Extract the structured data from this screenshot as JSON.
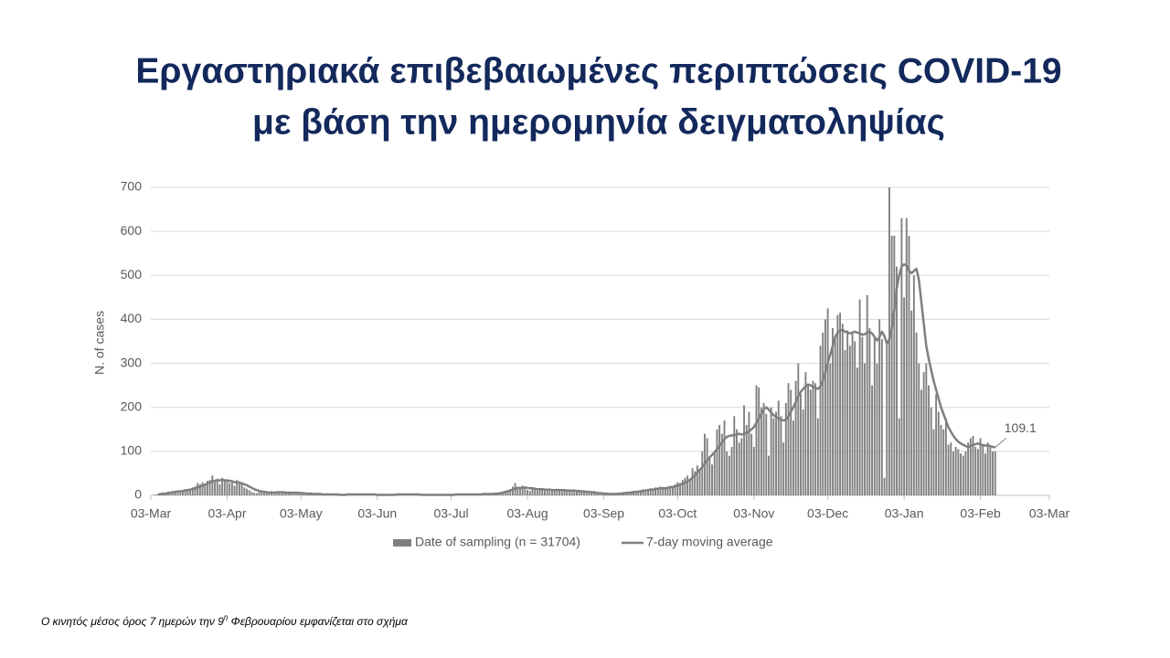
{
  "chart_data": {
    "type": "bar-line",
    "title": [
      "Εργαστηριακά επιβεβαιωμένες περιπτώσεις COVID-19",
      "με βάση την ημερομηνία δειγματοληψίας"
    ],
    "y_label": "N. of cases",
    "annotation": "109.1",
    "footnote": [
      "Ο κινητός μέσος όρος 7 ημερών την 9",
      "η",
      " Φεβρουαρίου  εμφανίζεται στο σχήμα"
    ],
    "xlim": [
      0,
      365
    ],
    "xticks": [
      {
        "value": 0,
        "label": "03-Mar"
      },
      {
        "value": 31,
        "label": "03-Apr"
      },
      {
        "value": 61,
        "label": "03-May"
      },
      {
        "value": 92,
        "label": "03-Jun"
      },
      {
        "value": 122,
        "label": "03-Jul"
      },
      {
        "value": 153,
        "label": "03-Aug"
      },
      {
        "value": 184,
        "label": "03-Sep"
      },
      {
        "value": 214,
        "label": "03-Oct"
      },
      {
        "value": 245,
        "label": "03-Nov"
      },
      {
        "value": 275,
        "label": "03-Dec"
      },
      {
        "value": 306,
        "label": "03-Jan"
      },
      {
        "value": 337,
        "label": "03-Feb"
      },
      {
        "value": 365,
        "label": "03-Mar"
      }
    ],
    "ylim": [
      0,
      700
    ],
    "yticks": [
      0,
      100,
      200,
      300,
      400,
      500,
      600,
      700
    ],
    "grid": true,
    "legend": "bottom",
    "x": [
      0,
      1,
      2,
      3,
      4,
      5,
      6,
      7,
      8,
      9,
      10,
      11,
      12,
      13,
      14,
      15,
      16,
      17,
      18,
      19,
      20,
      21,
      22,
      23,
      24,
      25,
      26,
      27,
      28,
      29,
      30,
      31,
      32,
      33,
      34,
      35,
      36,
      37,
      38,
      39,
      40,
      41,
      42,
      43,
      44,
      45,
      46,
      47,
      48,
      49,
      50,
      51,
      52,
      53,
      54,
      55,
      56,
      57,
      58,
      59,
      60,
      61,
      62,
      63,
      64,
      65,
      66,
      67,
      68,
      69,
      70,
      71,
      72,
      73,
      74,
      75,
      76,
      77,
      78,
      79,
      80,
      81,
      82,
      83,
      84,
      85,
      86,
      87,
      88,
      89,
      90,
      91,
      92,
      93,
      94,
      95,
      96,
      97,
      98,
      99,
      100,
      101,
      102,
      103,
      104,
      105,
      106,
      107,
      108,
      109,
      110,
      111,
      112,
      113,
      114,
      115,
      116,
      117,
      118,
      119,
      120,
      121,
      122,
      123,
      124,
      125,
      126,
      127,
      128,
      129,
      130,
      131,
      132,
      133,
      134,
      135,
      136,
      137,
      138,
      139,
      140,
      141,
      142,
      143,
      144,
      145,
      146,
      147,
      148,
      149,
      150,
      151,
      152,
      153,
      154,
      155,
      156,
      157,
      158,
      159,
      160,
      161,
      162,
      163,
      164,
      165,
      166,
      167,
      168,
      169,
      170,
      171,
      172,
      173,
      174,
      175,
      176,
      177,
      178,
      179,
      180,
      181,
      182,
      183,
      184,
      185,
      186,
      187,
      188,
      189,
      190,
      191,
      192,
      193,
      194,
      195,
      196,
      197,
      198,
      199,
      200,
      201,
      202,
      203,
      204,
      205,
      206,
      207,
      208,
      209,
      210,
      211,
      212,
      213,
      214,
      215,
      216,
      217,
      218,
      219,
      220,
      221,
      222,
      223,
      224,
      225,
      226,
      227,
      228,
      229,
      230,
      231,
      232,
      233,
      234,
      235,
      236,
      237,
      238,
      239,
      240,
      241,
      242,
      243,
      244,
      245,
      246,
      247,
      248,
      249,
      250,
      251,
      252,
      253,
      254,
      255,
      256,
      257,
      258,
      259,
      260,
      261,
      262,
      263,
      264,
      265,
      266,
      267,
      268,
      269,
      270,
      271,
      272,
      273,
      274,
      275,
      276,
      277,
      278,
      279,
      280,
      281,
      282,
      283,
      284,
      285,
      286,
      287,
      288,
      289,
      290,
      291,
      292,
      293,
      294,
      295,
      296,
      297,
      298,
      299,
      300,
      301,
      302,
      303,
      304,
      305,
      306,
      307,
      308,
      309,
      310,
      311,
      312,
      313,
      314,
      315,
      316,
      317,
      318,
      319,
      320,
      321,
      322,
      323,
      324,
      325,
      326,
      327,
      328,
      329,
      330,
      331,
      332,
      333,
      334,
      335,
      336,
      337,
      338,
      339,
      340,
      341,
      342,
      343
    ],
    "series": [
      {
        "name": "Date of sampling (n = 31704)",
        "color": "#808080",
        "values": [
          0,
          1,
          2,
          3,
          5,
          6,
          4,
          8,
          7,
          10,
          9,
          11,
          10,
          12,
          14,
          13,
          15,
          18,
          20,
          28,
          25,
          30,
          27,
          33,
          35,
          45,
          30,
          38,
          25,
          40,
          33,
          36,
          28,
          30,
          22,
          35,
          26,
          30,
          18,
          15,
          12,
          8,
          6,
          5,
          7,
          9,
          6,
          8,
          5,
          7,
          6,
          8,
          9,
          5,
          7,
          6,
          8,
          4,
          5,
          6,
          5,
          4,
          6,
          3,
          2,
          4,
          3,
          2,
          1,
          3,
          2,
          1,
          2,
          3,
          1,
          2,
          1,
          0,
          2,
          1,
          1,
          2,
          3,
          2,
          4,
          3,
          2,
          1,
          2,
          1,
          2,
          1,
          1,
          2,
          0,
          1,
          2,
          1,
          1,
          2,
          1,
          3,
          2,
          4,
          2,
          1,
          2,
          1,
          1,
          2,
          1,
          1,
          2,
          1,
          0,
          1,
          1,
          2,
          1,
          1,
          2,
          1,
          1,
          1,
          2,
          3,
          1,
          2,
          1,
          1,
          2,
          3,
          1,
          2,
          4,
          2,
          3,
          5,
          2,
          3,
          4,
          6,
          5,
          8,
          10,
          12,
          14,
          20,
          28,
          18,
          15,
          22,
          18,
          12,
          10,
          14,
          16,
          11,
          13,
          15,
          12,
          14,
          10,
          13,
          11,
          15,
          12,
          9,
          13,
          10,
          12,
          8,
          11,
          9,
          10,
          7,
          8,
          6,
          7,
          5,
          6,
          4,
          5,
          3,
          2,
          3,
          1,
          2,
          3,
          4,
          5,
          6,
          4,
          8,
          7,
          9,
          10,
          8,
          11,
          12,
          14,
          10,
          13,
          16,
          12,
          18,
          15,
          20,
          17,
          14,
          20,
          22,
          18,
          25,
          30,
          28,
          35,
          40,
          45,
          38,
          62,
          55,
          68,
          60,
          100,
          140,
          130,
          85,
          70,
          95,
          150,
          160,
          140,
          170,
          100,
          90,
          110,
          180,
          150,
          120,
          130,
          205,
          160,
          190,
          140,
          110,
          250,
          245,
          200,
          210,
          185,
          90,
          200,
          175,
          190,
          215,
          180,
          120,
          210,
          255,
          240,
          170,
          260,
          300,
          230,
          195,
          280,
          250,
          240,
          260,
          255,
          175,
          340,
          370,
          400,
          425,
          300,
          380,
          360,
          410,
          415,
          390,
          330,
          375,
          340,
          370,
          350,
          290,
          445,
          360,
          300,
          455,
          380,
          250,
          360,
          300,
          400,
          355,
          40,
          350,
          700,
          590,
          590,
          520,
          175,
          630,
          450,
          630,
          590,
          420,
          500,
          370,
          300,
          240,
          280,
          300,
          250,
          200,
          150,
          230,
          190,
          160,
          150,
          175,
          115,
          120,
          100,
          110,
          105,
          95,
          90,
          100,
          120,
          130,
          135,
          110,
          105,
          130,
          115,
          95,
          120,
          110,
          100,
          100
        ]
      },
      {
        "name": "7-day moving average",
        "color": "#7f7f7f",
        "values": [
          null,
          null,
          null,
          2,
          3,
          4,
          4,
          5,
          6,
          7,
          8,
          9,
          9,
          10,
          11,
          12,
          13,
          14,
          16,
          18,
          20,
          22,
          24,
          27,
          29,
          32,
          33,
          34,
          34,
          35,
          34,
          34,
          33,
          32,
          30,
          29,
          29,
          27,
          25,
          23,
          20,
          17,
          14,
          12,
          10,
          9,
          8,
          7,
          6,
          7,
          6,
          7,
          7,
          7,
          7,
          6,
          6,
          6,
          6,
          6,
          6,
          5,
          5,
          4,
          4,
          4,
          3,
          3,
          3,
          3,
          2,
          2,
          2,
          2,
          2,
          2,
          2,
          1,
          1,
          1,
          2,
          2,
          2,
          2,
          2,
          2,
          2,
          2,
          2,
          2,
          2,
          2,
          1,
          1,
          1,
          1,
          1,
          1,
          1,
          1,
          2,
          2,
          2,
          2,
          2,
          2,
          2,
          2,
          2,
          2,
          1,
          1,
          1,
          1,
          1,
          1,
          1,
          1,
          1,
          1,
          1,
          1,
          1,
          1,
          2,
          2,
          2,
          2,
          2,
          2,
          2,
          2,
          2,
          2,
          2,
          3,
          3,
          3,
          3,
          3,
          4,
          4,
          5,
          6,
          8,
          9,
          11,
          13,
          15,
          17,
          17,
          17,
          18,
          17,
          16,
          16,
          15,
          14,
          14,
          14,
          13,
          13,
          13,
          12,
          12,
          12,
          12,
          12,
          12,
          11,
          11,
          11,
          11,
          10,
          10,
          9,
          9,
          8,
          8,
          7,
          7,
          6,
          5,
          5,
          4,
          4,
          3,
          3,
          3,
          3,
          4,
          4,
          5,
          5,
          6,
          6,
          7,
          8,
          8,
          9,
          10,
          11,
          12,
          13,
          13,
          14,
          15,
          16,
          16,
          16,
          17,
          18,
          19,
          20,
          22,
          24,
          26,
          29,
          32,
          35,
          40,
          45,
          52,
          58,
          64,
          72,
          80,
          86,
          92,
          98,
          105,
          112,
          120,
          128,
          133,
          135,
          136,
          137,
          138,
          140,
          138,
          140,
          142,
          145,
          150,
          155,
          165,
          175,
          185,
          195,
          200,
          195,
          188,
          182,
          178,
          175,
          172,
          170,
          172,
          180,
          190,
          200,
          212,
          225,
          235,
          242,
          248,
          252,
          250,
          247,
          244,
          242,
          248,
          260,
          280,
          300,
          320,
          340,
          360,
          370,
          375,
          376,
          372,
          370,
          368,
          370,
          372,
          370,
          368,
          365,
          366,
          370,
          372,
          368,
          360,
          352,
          360,
          372,
          362,
          345,
          355,
          380,
          420,
          470,
          500,
          520,
          525,
          522,
          510,
          505,
          510,
          515,
          490,
          440,
          390,
          340,
          310,
          285,
          260,
          240,
          220,
          200,
          185,
          170,
          155,
          145,
          135,
          128,
          122,
          118,
          115,
          112,
          110,
          112,
          115,
          116,
          118,
          116,
          114,
          113,
          114,
          112,
          110,
          109.1
        ]
      }
    ]
  }
}
